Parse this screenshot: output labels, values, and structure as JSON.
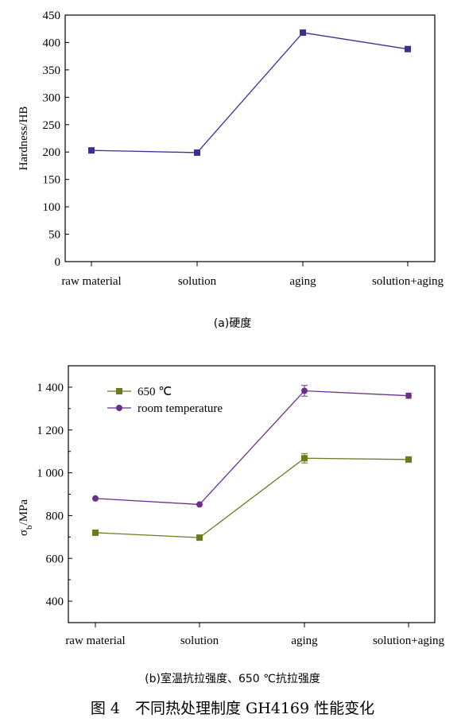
{
  "chart_data": [
    {
      "type": "line",
      "categories": [
        "raw material",
        "solution",
        "aging",
        "solution+aging"
      ],
      "ylabel": "Hardness/HB",
      "ylim": [
        0,
        450
      ],
      "yticks": [
        0,
        50,
        100,
        150,
        200,
        250,
        300,
        350,
        400,
        450
      ],
      "series": [
        {
          "values": [
            203,
            199,
            418,
            388
          ],
          "color": "#3b2f91",
          "marker": "square"
        }
      ],
      "grid": false,
      "caption": "(a)硬度"
    },
    {
      "type": "line",
      "categories": [
        "raw material",
        "solution",
        "aging",
        "solution+aging"
      ],
      "ylabel": "σb/MPa",
      "ylim": [
        300,
        1500
      ],
      "yticks": [
        400,
        600,
        800,
        1000,
        1200,
        1400
      ],
      "ytick_labels": [
        "400",
        "600",
        "800",
        "1 000",
        "1 200",
        "1 400"
      ],
      "legend_position": "top-left",
      "series": [
        {
          "name": "650 ℃",
          "values": [
            720,
            697,
            1068,
            1062
          ],
          "errors": [
            0,
            12,
            22,
            0
          ],
          "color": "#6b7a1f",
          "marker": "square"
        },
        {
          "name": "room temperature",
          "values": [
            880,
            852,
            1383,
            1360
          ],
          "errors": [
            0,
            0,
            25,
            12
          ],
          "color": "#6a2f8a",
          "marker": "circle"
        }
      ],
      "grid": false,
      "caption": "(b)室温抗拉强度、650 ℃抗拉强度"
    }
  ],
  "figure_title": "图 4　不同热处理制度 GH4169 性能变化"
}
